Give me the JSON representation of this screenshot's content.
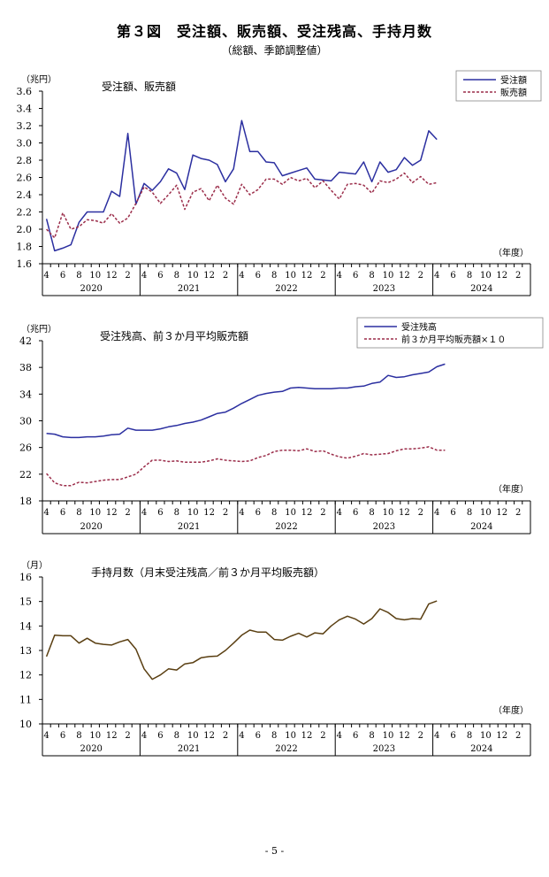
{
  "page": {
    "title": "第３図　受注額、販売額、受注残高、手持月数",
    "subtitle": "（総額、季節調整値）",
    "page_number": "- 5 -"
  },
  "x_axis": {
    "month_labels": [
      "4",
      "6",
      "8",
      "10",
      "12",
      "2"
    ],
    "years": [
      "2020",
      "2021",
      "2022",
      "2023",
      "2024"
    ],
    "axis_title": "（年度）",
    "start": "2020-04",
    "months_total": 60
  },
  "colors": {
    "orders": "#2b2fa0",
    "sales": "#9b2d4a",
    "ratio": "#5a3f12"
  },
  "chart_data": [
    {
      "type": "line",
      "title": "受注額、販売額",
      "unit_label": "（兆円）",
      "ylim": [
        1.6,
        3.6
      ],
      "yticks": [
        "1.6",
        "1.8",
        "2.0",
        "2.2",
        "2.4",
        "2.6",
        "2.8",
        "3.0",
        "3.2",
        "3.4",
        "3.6"
      ],
      "legend_position": "top-right",
      "series": [
        {
          "name": "受注額",
          "style": "solid",
          "values": [
            2.12,
            1.75,
            1.78,
            1.82,
            2.08,
            2.2,
            2.2,
            2.2,
            2.44,
            2.38,
            3.11,
            2.29,
            2.53,
            2.45,
            2.55,
            2.7,
            2.65,
            2.46,
            2.86,
            2.82,
            2.8,
            2.75,
            2.55,
            2.7,
            3.26,
            2.9,
            2.9,
            2.78,
            2.77,
            2.62,
            2.65,
            2.68,
            2.71,
            2.58,
            2.57,
            2.56,
            2.66,
            2.65,
            2.64,
            2.78,
            2.55,
            2.78,
            2.66,
            2.69,
            2.83,
            2.74,
            2.8,
            3.14,
            3.04
          ]
        },
        {
          "name": "販売額",
          "style": "dashed",
          "values": [
            2.0,
            1.9,
            2.19,
            2.0,
            2.03,
            2.11,
            2.1,
            2.07,
            2.18,
            2.07,
            2.13,
            2.3,
            2.49,
            2.43,
            2.3,
            2.4,
            2.51,
            2.23,
            2.43,
            2.47,
            2.33,
            2.51,
            2.36,
            2.29,
            2.52,
            2.4,
            2.46,
            2.58,
            2.58,
            2.52,
            2.6,
            2.56,
            2.59,
            2.48,
            2.56,
            2.45,
            2.35,
            2.52,
            2.53,
            2.51,
            2.42,
            2.56,
            2.54,
            2.58,
            2.65,
            2.54,
            2.61,
            2.52,
            2.54
          ]
        }
      ]
    },
    {
      "type": "line",
      "title": "受注残高、前３か月平均販売額",
      "unit_label": "（兆円）",
      "ylim": [
        18,
        42
      ],
      "yticks": [
        "18",
        "22",
        "26",
        "30",
        "34",
        "38",
        "42"
      ],
      "legend_position": "top-right",
      "series": [
        {
          "name": "受注残高",
          "style": "solid",
          "values": [
            28.1,
            28.0,
            27.6,
            27.5,
            27.5,
            27.6,
            27.6,
            27.7,
            27.9,
            28.0,
            28.9,
            28.6,
            28.6,
            28.6,
            28.8,
            29.1,
            29.3,
            29.6,
            29.8,
            30.1,
            30.6,
            31.1,
            31.3,
            31.9,
            32.6,
            33.2,
            33.8,
            34.1,
            34.3,
            34.4,
            34.9,
            35.0,
            34.9,
            34.8,
            34.8,
            34.8,
            34.9,
            34.9,
            35.1,
            35.2,
            35.6,
            35.8,
            36.8,
            36.5,
            36.6,
            36.9,
            37.1,
            37.3,
            38.1,
            38.5
          ]
        },
        {
          "name": "前３か月平均販売額×１０",
          "style": "dashed",
          "values": [
            22.1,
            20.7,
            20.3,
            20.3,
            20.8,
            20.7,
            20.9,
            21.1,
            21.2,
            21.2,
            21.6,
            22.0,
            23.1,
            24.1,
            24.1,
            23.9,
            24.0,
            23.8,
            23.8,
            23.8,
            24.0,
            24.3,
            24.1,
            24.0,
            23.9,
            24.0,
            24.5,
            24.8,
            25.4,
            25.6,
            25.6,
            25.5,
            25.8,
            25.4,
            25.5,
            25.0,
            24.6,
            24.4,
            24.7,
            25.1,
            24.9,
            25.0,
            25.1,
            25.5,
            25.8,
            25.8,
            25.9,
            26.1,
            25.6,
            25.6
          ]
        }
      ]
    },
    {
      "type": "line",
      "title": "手持月数（月末受注残高／前３か月平均販売額）",
      "unit_label": "（月）",
      "ylim": [
        10,
        16
      ],
      "yticks": [
        "10",
        "11",
        "12",
        "13",
        "14",
        "15",
        "16"
      ],
      "series": [
        {
          "style": "solid",
          "values": [
            12.75,
            13.62,
            13.6,
            13.6,
            13.3,
            13.5,
            13.3,
            13.25,
            13.22,
            13.35,
            13.45,
            13.05,
            12.25,
            11.82,
            12.0,
            12.25,
            12.2,
            12.45,
            12.5,
            12.7,
            12.75,
            12.77,
            13.0,
            13.3,
            13.62,
            13.83,
            13.75,
            13.75,
            13.45,
            13.42,
            13.58,
            13.7,
            13.55,
            13.72,
            13.68,
            14.0,
            14.25,
            14.4,
            14.28,
            14.08,
            14.3,
            14.7,
            14.55,
            14.3,
            14.25,
            14.3,
            14.28,
            14.9,
            15.02
          ]
        }
      ]
    }
  ]
}
